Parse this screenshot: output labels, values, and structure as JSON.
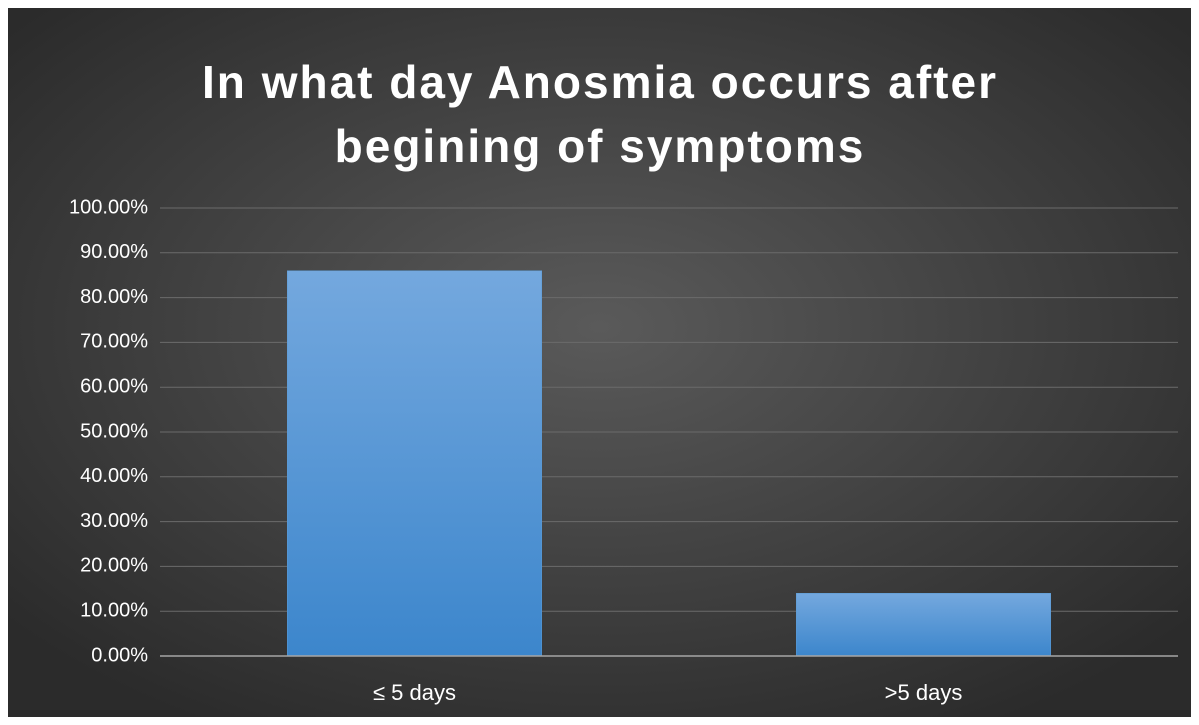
{
  "chart_data": {
    "type": "bar",
    "title": "In what day Anosmia occurs after begining of symptoms",
    "categories": [
      "≤ 5 days",
      ">5 days"
    ],
    "values": [
      86,
      14
    ],
    "color": "#5b9bd5",
    "ylim": [
      0,
      100
    ],
    "yticks": [
      {
        "value": 0,
        "label": "0.00%"
      },
      {
        "value": 10,
        "label": "10.00%"
      },
      {
        "value": 20,
        "label": "20.00%"
      },
      {
        "value": 30,
        "label": "30.00%"
      },
      {
        "value": 40,
        "label": "40.00%"
      },
      {
        "value": 50,
        "label": "50.00%"
      },
      {
        "value": 60,
        "label": "60.00%"
      },
      {
        "value": 70,
        "label": "70.00%"
      },
      {
        "value": 80,
        "label": "80.00%"
      },
      {
        "value": 90,
        "label": "90.00%"
      },
      {
        "value": 100,
        "label": "100.00%"
      }
    ],
    "grid": true
  }
}
